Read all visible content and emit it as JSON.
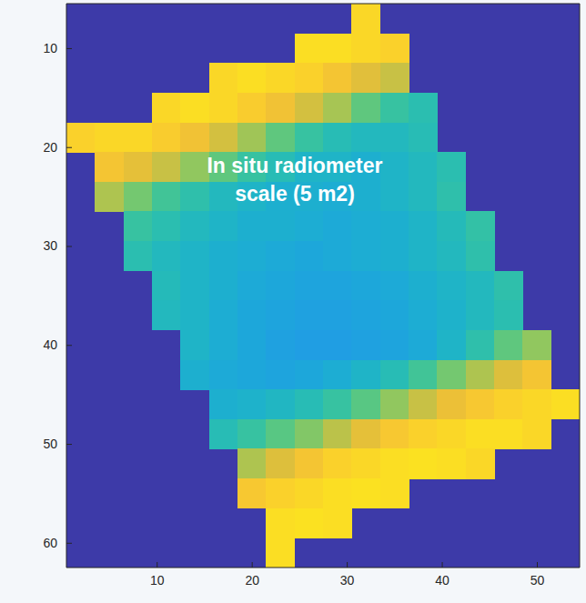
{
  "chart_data": {
    "type": "heatmap",
    "annotation": [
      "In situ radiometer",
      "scale (5 m2)"
    ],
    "x": [
      2,
      5,
      8,
      11,
      14,
      17,
      20,
      23,
      26,
      29,
      32,
      35,
      38,
      41,
      44,
      47,
      50,
      53
    ],
    "y": [
      7,
      10,
      13,
      16,
      19,
      22,
      25,
      28,
      31,
      34,
      37,
      40,
      43,
      46,
      49,
      52,
      55,
      58,
      61
    ],
    "z": [
      [
        null,
        null,
        null,
        null,
        null,
        null,
        null,
        null,
        null,
        null,
        0.9,
        null,
        null,
        null,
        null,
        null,
        null,
        null
      ],
      [
        null,
        null,
        null,
        null,
        null,
        null,
        null,
        null,
        0.92,
        0.92,
        0.9,
        0.88,
        null,
        null,
        null,
        null,
        null,
        null
      ],
      [
        null,
        null,
        null,
        null,
        null,
        0.9,
        0.92,
        0.9,
        0.88,
        0.82,
        0.75,
        0.7,
        null,
        null,
        null,
        null,
        null,
        null
      ],
      [
        null,
        null,
        null,
        0.9,
        0.92,
        0.9,
        0.86,
        0.8,
        0.72,
        0.65,
        0.55,
        0.48,
        0.45,
        null,
        null,
        null,
        null,
        null
      ],
      [
        0.88,
        0.9,
        0.9,
        0.86,
        0.8,
        0.72,
        0.64,
        0.55,
        0.48,
        0.44,
        0.42,
        0.42,
        0.44,
        null,
        null,
        null,
        null,
        null
      ],
      [
        null,
        0.82,
        0.76,
        0.7,
        0.62,
        0.55,
        0.48,
        0.44,
        0.4,
        0.4,
        0.38,
        0.4,
        0.42,
        0.45,
        null,
        null,
        null,
        null
      ],
      [
        null,
        0.66,
        0.58,
        0.5,
        0.46,
        0.42,
        0.4,
        0.38,
        0.38,
        0.37,
        0.38,
        0.4,
        0.42,
        0.46,
        null,
        null,
        null,
        null
      ],
      [
        null,
        null,
        0.48,
        0.45,
        0.42,
        0.4,
        0.38,
        0.38,
        0.37,
        0.36,
        0.37,
        0.38,
        0.4,
        0.43,
        0.47,
        null,
        null,
        null
      ],
      [
        null,
        null,
        0.45,
        0.42,
        0.4,
        0.38,
        0.37,
        0.36,
        0.35,
        0.36,
        0.37,
        0.38,
        0.4,
        0.42,
        0.46,
        null,
        null,
        null
      ],
      [
        null,
        null,
        null,
        0.43,
        0.4,
        0.38,
        0.36,
        0.35,
        0.34,
        0.34,
        0.35,
        0.36,
        0.38,
        0.4,
        0.42,
        0.46,
        null,
        null
      ],
      [
        null,
        null,
        null,
        0.42,
        0.4,
        0.37,
        0.35,
        0.34,
        0.33,
        0.33,
        0.34,
        0.35,
        0.37,
        0.39,
        0.42,
        0.45,
        null,
        null
      ],
      [
        null,
        null,
        null,
        null,
        0.4,
        0.37,
        0.35,
        0.33,
        0.32,
        0.32,
        0.33,
        0.34,
        0.36,
        0.4,
        0.46,
        0.55,
        0.62,
        null
      ],
      [
        null,
        null,
        null,
        null,
        0.38,
        0.36,
        0.35,
        0.34,
        0.35,
        0.37,
        0.4,
        0.44,
        0.5,
        0.58,
        0.66,
        0.74,
        0.82,
        null
      ],
      [
        null,
        null,
        null,
        null,
        null,
        0.38,
        0.39,
        0.41,
        0.44,
        0.48,
        0.54,
        0.62,
        0.7,
        0.78,
        0.84,
        0.88,
        0.9,
        0.92
      ],
      [
        null,
        null,
        null,
        null,
        null,
        0.44,
        0.48,
        0.54,
        0.6,
        0.68,
        0.76,
        0.84,
        0.88,
        0.9,
        0.92,
        0.92,
        0.9,
        null
      ],
      [
        null,
        null,
        null,
        null,
        null,
        null,
        0.66,
        0.74,
        0.82,
        0.88,
        0.9,
        0.92,
        0.93,
        0.92,
        0.9,
        null,
        null,
        null
      ],
      [
        null,
        null,
        null,
        null,
        null,
        null,
        0.84,
        0.88,
        0.9,
        0.92,
        0.93,
        0.92,
        null,
        null,
        null,
        null,
        null,
        null
      ],
      [
        null,
        null,
        null,
        null,
        null,
        null,
        null,
        0.92,
        0.93,
        0.92,
        null,
        null,
        null,
        null,
        null,
        null,
        null,
        null
      ],
      [
        null,
        null,
        null,
        null,
        null,
        null,
        null,
        0.92,
        null,
        null,
        null,
        null,
        null,
        null,
        null,
        null,
        null,
        null
      ]
    ],
    "zlim": [
      0,
      1
    ],
    "xlim": [
      0.5,
      54.5
    ],
    "ylim": [
      5.5,
      62.5
    ],
    "xticks": [
      10,
      20,
      30,
      40,
      50
    ],
    "yticks": [
      10,
      20,
      30,
      40,
      50,
      60
    ]
  }
}
